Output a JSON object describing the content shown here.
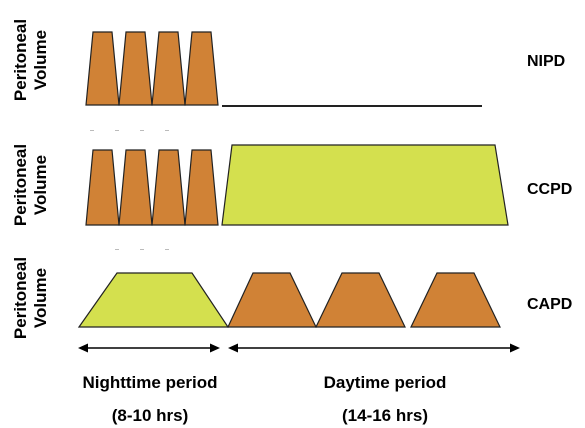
{
  "colors": {
    "exchange_fill": "#d08236",
    "dwell_fill": "#d4e04e",
    "outline": "#222222"
  },
  "rows": [
    {
      "y_label_line1": "Peritoneal",
      "y_label_line2": "Volume",
      "modality": "NIPD",
      "night_pattern": "4 short exchanges",
      "day_pattern": "dry (empty)"
    },
    {
      "y_label_line1": "Peritoneal",
      "y_label_line2": "Volume",
      "modality": "CCPD",
      "night_pattern": "4 short exchanges",
      "day_pattern": "1 long dwell"
    },
    {
      "y_label_line1": "Peritoneal",
      "y_label_line2": "Volume",
      "modality": "CAPD",
      "night_pattern": "1 long dwell",
      "day_pattern": "3 exchanges"
    }
  ],
  "periods": {
    "night": {
      "label": "Nighttime period",
      "duration": "(8-10 hrs)"
    },
    "day": {
      "label": "Daytime period",
      "duration": "(14-16 hrs)"
    }
  }
}
